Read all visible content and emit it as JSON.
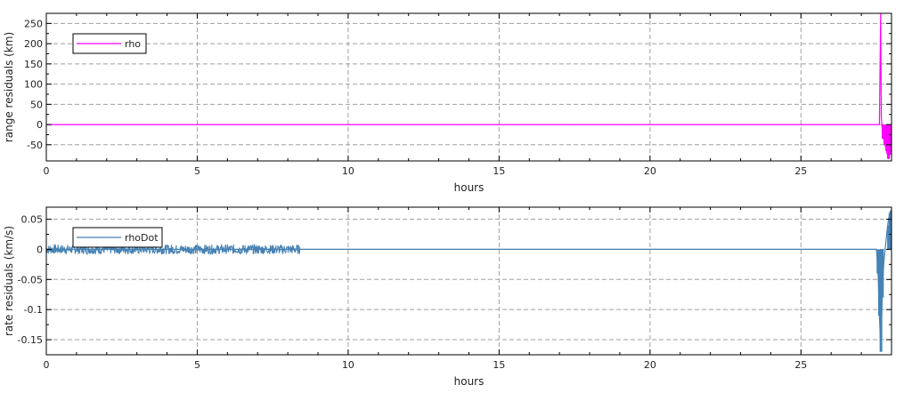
{
  "chart_data": [
    {
      "type": "line",
      "xlabel": "hours",
      "ylabel": "range residuals (km)",
      "xlim": [
        0,
        28
      ],
      "ylim": [
        -90,
        275
      ],
      "x_ticks": [
        0,
        5,
        10,
        15,
        20,
        25
      ],
      "y_ticks": [
        -50,
        0,
        50,
        100,
        150,
        200,
        250
      ],
      "x_tick_labels": [
        "0",
        "5",
        "10",
        "15",
        "20",
        "25"
      ],
      "y_tick_labels": [
        "-50",
        "0",
        "50",
        "100",
        "150",
        "200",
        "250"
      ],
      "grid": true,
      "legend_position": "top-left",
      "series": [
        {
          "name": "rho",
          "color": "#ff00ff",
          "x": [
            0,
            8.4,
            27.6,
            27.64,
            27.66,
            27.7,
            27.75,
            27.8,
            27.85,
            27.9,
            27.95,
            28.0
          ],
          "y": [
            0,
            0,
            0,
            275,
            20,
            -20,
            -40,
            -55,
            -70,
            -85,
            -60,
            -45
          ],
          "band": [
            {
              "x": 27.72,
              "min": -35,
              "max": 0
            },
            {
              "x": 27.78,
              "min": -50,
              "max": 0
            },
            {
              "x": 27.84,
              "min": -65,
              "max": 0
            },
            {
              "x": 27.9,
              "min": -85,
              "max": 0
            },
            {
              "x": 27.96,
              "min": -75,
              "max": 0
            },
            {
              "x": 28.0,
              "min": -60,
              "max": 0
            }
          ]
        }
      ]
    },
    {
      "type": "line",
      "xlabel": "hours",
      "ylabel": "rate residuals (km/s)",
      "xlim": [
        0,
        28
      ],
      "ylim": [
        -0.175,
        0.07
      ],
      "x_ticks": [
        0,
        5,
        10,
        15,
        20,
        25
      ],
      "y_ticks": [
        -0.15,
        -0.1,
        -0.05,
        0,
        0.05
      ],
      "x_tick_labels": [
        "0",
        "5",
        "10",
        "15",
        "20",
        "25"
      ],
      "y_tick_labels": [
        "-0.15",
        "-0.1",
        "-0.05",
        "0",
        "0.05"
      ],
      "grid": true,
      "legend_position": "top-left",
      "series": [
        {
          "name": "rhoDot",
          "color": "#4682b4",
          "x": [
            0,
            8.4,
            8.41,
            27.5,
            27.55,
            27.6,
            27.65,
            27.7,
            27.75,
            27.8,
            27.85,
            27.9,
            27.95,
            28.0
          ],
          "y": [
            0,
            0,
            0,
            0,
            -0.03,
            -0.11,
            -0.17,
            -0.06,
            -0.02,
            0.005,
            0.03,
            0.05,
            0.062,
            0.065
          ],
          "noise_band": {
            "x_start": 0,
            "x_end": 8.4,
            "amplitude": 0.008
          },
          "band": [
            {
              "x": 27.55,
              "min": -0.04,
              "max": 0
            },
            {
              "x": 27.6,
              "min": -0.11,
              "max": 0
            },
            {
              "x": 27.65,
              "min": -0.17,
              "max": 0
            },
            {
              "x": 27.7,
              "min": -0.08,
              "max": 0
            },
            {
              "x": 27.9,
              "min": 0,
              "max": 0.04
            },
            {
              "x": 27.95,
              "min": 0,
              "max": 0.06
            },
            {
              "x": 28.0,
              "min": 0,
              "max": 0.065
            }
          ]
        }
      ]
    }
  ]
}
